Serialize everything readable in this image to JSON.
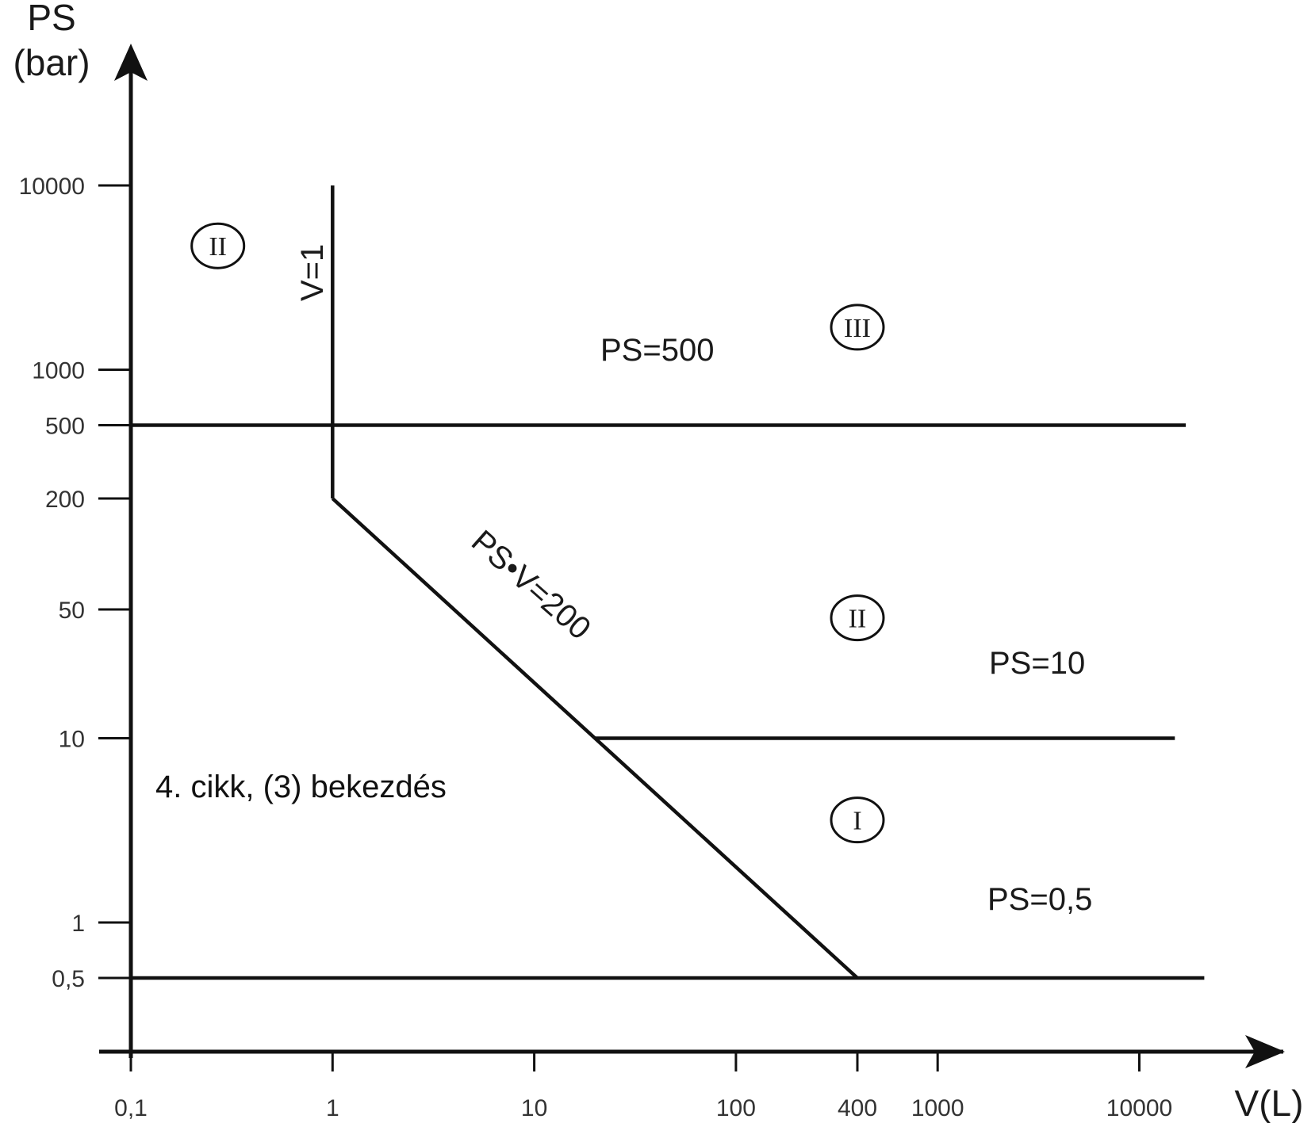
{
  "chart_data": {
    "type": "line",
    "x_scale": "log",
    "y_scale": "log",
    "xlabel": "V(L)",
    "ylabel_line1": "PS",
    "ylabel_line2": "(bar)",
    "x_ticks": [
      {
        "value": 0.1,
        "label": "0,1"
      },
      {
        "value": 1,
        "label": "1"
      },
      {
        "value": 10,
        "label": "10"
      },
      {
        "value": 100,
        "label": "100"
      },
      {
        "value": 400,
        "label": "400"
      },
      {
        "value": 1000,
        "label": "1000"
      },
      {
        "value": 10000,
        "label": "10000"
      }
    ],
    "y_ticks": [
      {
        "value": 10000,
        "label": "10000"
      },
      {
        "value": 1000,
        "label": "1000"
      },
      {
        "value": 500,
        "label": "500"
      },
      {
        "value": 200,
        "label": "200"
      },
      {
        "value": 50,
        "label": "50"
      },
      {
        "value": 10,
        "label": "10"
      },
      {
        "value": 1,
        "label": "1"
      },
      {
        "value": 0.5,
        "label": "0,5"
      }
    ],
    "lines": [
      {
        "label": "V=1",
        "points": [
          [
            1,
            10000
          ],
          [
            1,
            200
          ]
        ]
      },
      {
        "label": "PS=500",
        "points": [
          [
            0.1,
            500
          ],
          [
            17000,
            500
          ]
        ]
      },
      {
        "label": "PS•V=200",
        "points": [
          [
            1,
            200
          ],
          [
            400,
            0.5
          ]
        ]
      },
      {
        "label": "PS=10",
        "points": [
          [
            20,
            10
          ],
          [
            15000,
            10
          ]
        ]
      },
      {
        "label": "PS=0,5",
        "points": [
          [
            0.1,
            0.5
          ],
          [
            21000,
            0.5
          ]
        ]
      }
    ],
    "regions": [
      {
        "label": "II",
        "x": 0.27,
        "y": 4700
      },
      {
        "label": "III",
        "x": 400,
        "y": 1700
      },
      {
        "label": "II",
        "x": 400,
        "y": 45
      },
      {
        "label": "I",
        "x": 400,
        "y": 3.6
      }
    ],
    "annotation": "4.  cikk,  (3)  bekezdés"
  }
}
